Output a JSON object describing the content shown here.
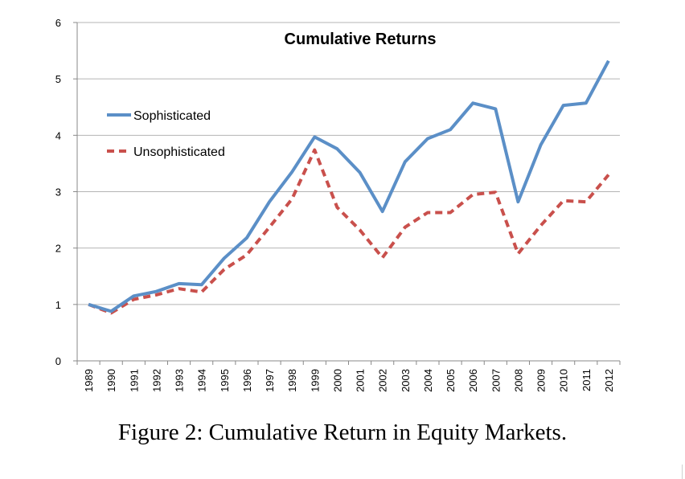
{
  "caption": "Figure 2: Cumulative Return in Equity Markets.",
  "chart_data": {
    "type": "line",
    "title": "Cumulative Returns",
    "xlabel": "",
    "ylabel": "",
    "ylim": [
      0,
      6
    ],
    "yticks": [
      "0",
      "1",
      "2",
      "3",
      "4",
      "5",
      "6"
    ],
    "grid": true,
    "legend": "upper-left",
    "categories": [
      "1989",
      "1990",
      "1991",
      "1992",
      "1993",
      "1994",
      "1995",
      "1996",
      "1997",
      "1998",
      "1999",
      "2000",
      "2001",
      "2002",
      "2003",
      "2004",
      "2005",
      "2006",
      "2007",
      "2008",
      "2009",
      "2010",
      "2011",
      "2012"
    ],
    "series": [
      {
        "name": "Sophisticated",
        "color": "#5b8fc7",
        "style": "solid",
        "values": [
          1.0,
          0.88,
          1.15,
          1.23,
          1.37,
          1.35,
          1.82,
          2.18,
          2.82,
          3.35,
          3.97,
          3.76,
          3.34,
          2.65,
          3.53,
          3.94,
          4.1,
          4.57,
          4.47,
          2.82,
          3.83,
          4.53,
          4.57,
          5.32
        ]
      },
      {
        "name": "Unsophisticated",
        "color": "#c9504c",
        "style": "dashed",
        "values": [
          1.0,
          0.85,
          1.09,
          1.17,
          1.28,
          1.22,
          1.62,
          1.88,
          2.37,
          2.87,
          3.74,
          2.72,
          2.32,
          1.83,
          2.37,
          2.63,
          2.63,
          2.95,
          2.99,
          1.9,
          2.4,
          2.84,
          2.82,
          3.3
        ]
      }
    ]
  }
}
